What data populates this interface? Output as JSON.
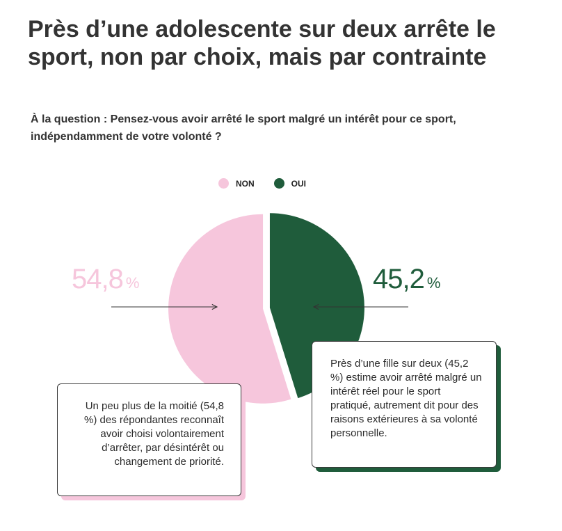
{
  "title": "Près d’une adolescente sur deux arrête le sport, non par choix, mais par contrainte",
  "question": "À la question : Pensez-vous avoir arrêté le sport malgré un intérêt pour ce sport, indépendamment de votre volonté ?",
  "colors": {
    "non": "#f6c6dc",
    "oui": "#1f5c3b"
  },
  "chart_data": {
    "type": "pie",
    "title": "",
    "legend_position": "top-center",
    "slices": [
      {
        "label": "NON",
        "value": 54.8,
        "display": "54,8",
        "unit": "%"
      },
      {
        "label": "OUI",
        "value": 45.2,
        "display": "45,2",
        "unit": "%"
      }
    ]
  },
  "annotations": {
    "non": "Un peu plus de la moitié (54,8 %) des répondantes reconnaît avoir choisi volontairement d’arrêter, par désintérêt ou changement de priorité.",
    "oui": "Près d’une fille sur deux (45,2 %) estime avoir arrêté malgré un intérêt réel pour le sport pratiqué, autrement dit pour des raisons extérieures à sa volonté personnelle."
  }
}
